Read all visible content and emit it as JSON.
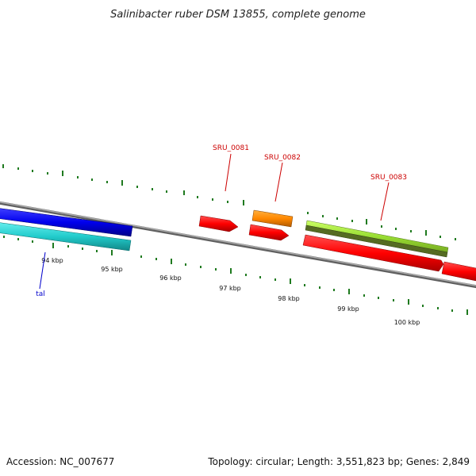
{
  "title": "Salinibacter ruber DSM 13855, complete genome",
  "footer": {
    "accession": "Accession: NC_007677",
    "topology": "Topology: circular; Length: 3,551,823 bp; Genes: 2,849"
  },
  "scale_labels": [
    "94 kbp",
    "95 kbp",
    "96 kbp",
    "97 kbp",
    "98 kbp",
    "99 kbp",
    "100 kbp"
  ],
  "gene_labels": [
    {
      "text": "SRU_0081",
      "color": "#cc0000"
    },
    {
      "text": "SRU_0082",
      "color": "#cc0000"
    },
    {
      "text": "SRU_0083",
      "color": "#cc0000"
    },
    {
      "text": "tal",
      "color": "#0000cc"
    }
  ],
  "colors": {
    "backbone": "#808080",
    "tick": "#1f7a1f",
    "gene_red": "#ff0000",
    "gene_orange": "#ff8800",
    "gene_blue": "#0000ee",
    "gene_cyan": "#22cccc",
    "gene_lime": "#99dd33",
    "gene_olive": "#557722"
  }
}
